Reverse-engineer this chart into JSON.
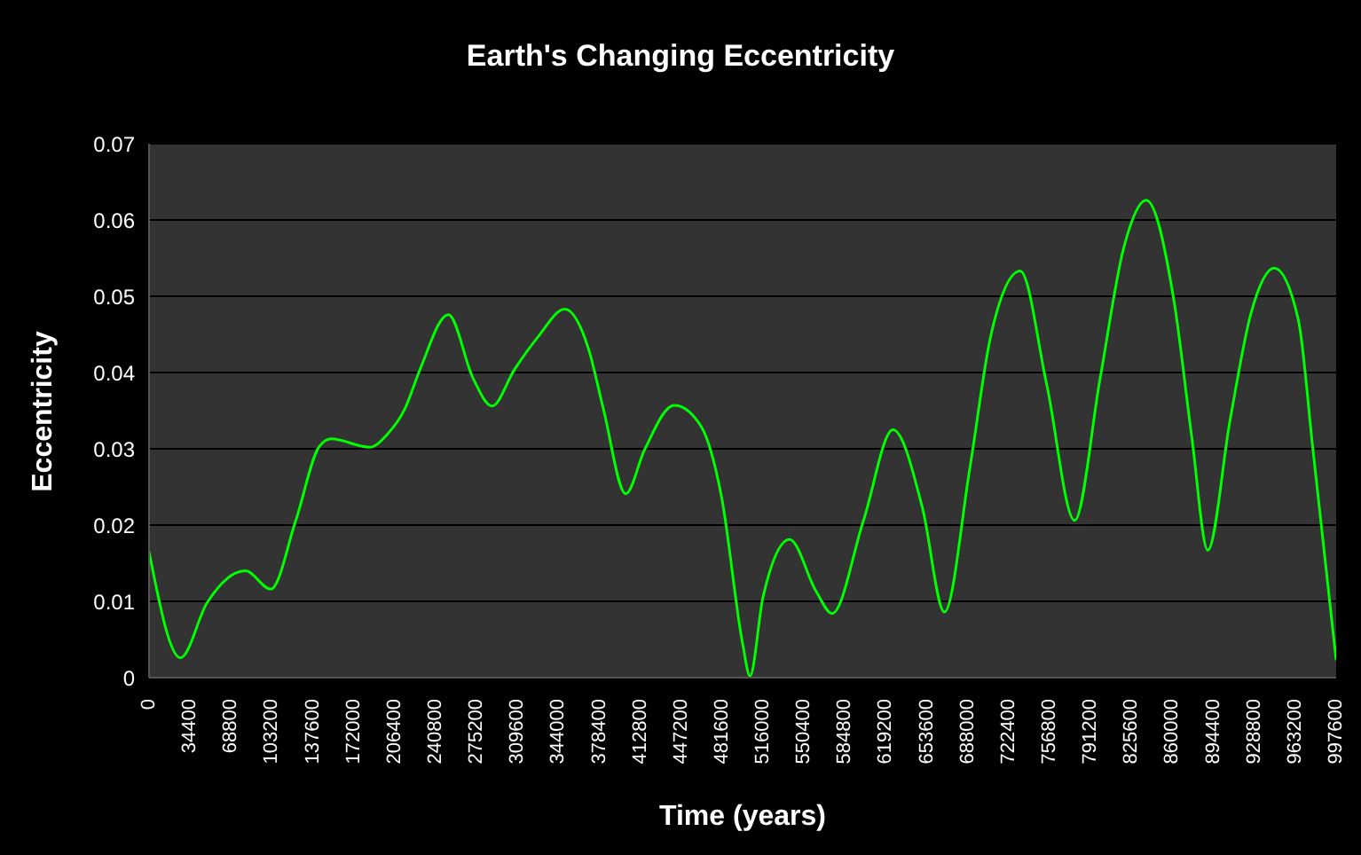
{
  "chart_data": {
    "type": "line",
    "title": "Earth's Changing Eccentricity",
    "xlabel": "Time (years)",
    "ylabel": "Eccentricity",
    "series": [
      {
        "color": "#00ff00",
        "x": [
          0,
          26400,
          48700,
          81000,
          102400,
          123300,
          143100,
          153100,
          185300,
          200200,
          215200,
          227700,
          251500,
          272400,
          288200,
          307100,
          327000,
          349400,
          369300,
          381700,
          400600,
          416500,
          441300,
          463700,
          481100,
          499000,
          505000,
          515900,
          538300,
          560600,
          574000,
          600400,
          625200,
          650000,
          668400,
          689900,
          707200,
          732100,
          754400,
          777800,
          799200,
          819000,
          838000,
          861400,
          876300,
          889700,
          908500,
          925900,
          945700,
          965700,
          978100,
          997600
        ],
        "values": [
          0.0165,
          0.0026,
          0.0098,
          0.014,
          0.0116,
          0.0206,
          0.0303,
          0.0313,
          0.0302,
          0.0319,
          0.0353,
          0.0404,
          0.0476,
          0.0392,
          0.0356,
          0.0404,
          0.0447,
          0.0483,
          0.0431,
          0.0353,
          0.0241,
          0.0299,
          0.0357,
          0.033,
          0.0237,
          0.0043,
          0.0002,
          0.0105,
          0.0181,
          0.0113,
          0.0084,
          0.0206,
          0.0325,
          0.0222,
          0.0086,
          0.0276,
          0.0447,
          0.0533,
          0.0384,
          0.0206,
          0.0392,
          0.0563,
          0.0626,
          0.0493,
          0.0315,
          0.0167,
          0.0338,
          0.0477,
          0.0537,
          0.047,
          0.0299,
          0.0023
        ]
      }
    ],
    "xlim": [
      0,
      997600
    ],
    "xticks": [
      0,
      34400,
      68800,
      103200,
      137600,
      172000,
      206400,
      240800,
      275200,
      309600,
      344000,
      378400,
      412800,
      447200,
      481600,
      516000,
      550400,
      584800,
      619200,
      653600,
      688000,
      722400,
      756800,
      791200,
      825600,
      860000,
      894400,
      928800,
      963200,
      997600
    ],
    "ylim": [
      0,
      0.07
    ],
    "yticks": [
      0,
      0.01,
      0.02,
      0.03,
      0.04,
      0.05,
      0.06,
      0.07
    ],
    "grid": "y",
    "legend": false,
    "marker": "none",
    "line_style": "solid"
  }
}
